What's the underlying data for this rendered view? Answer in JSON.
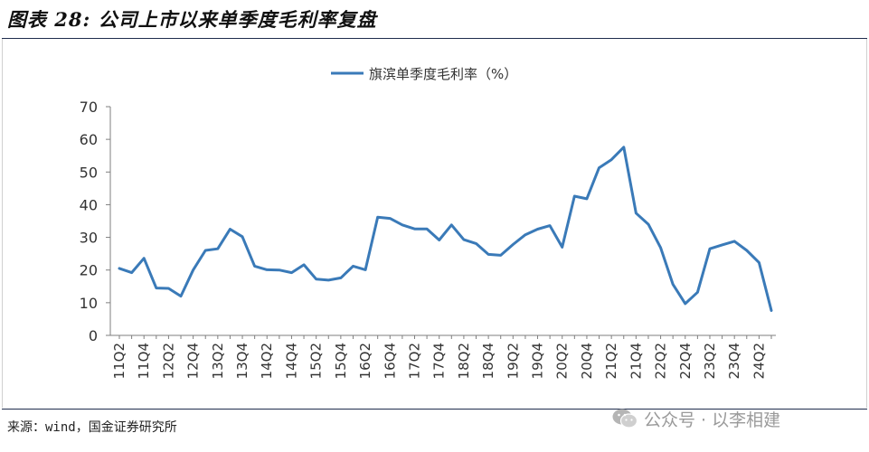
{
  "figure_title": "图表 28: 公司上市以来单季度毛利率复盘",
  "source_text": "来源：wind，国金证券研究所",
  "watermark": {
    "text": "公众号 · 以李相建",
    "icon": "wechat-icon"
  },
  "colors": {
    "line": "#3a7ab8",
    "axis": "#7f7f7f",
    "rule": "#1f2d4d"
  },
  "chart_data": {
    "type": "line",
    "legend_position": "top",
    "grid": false,
    "ylim": [
      0,
      70
    ],
    "yticks": [
      0,
      10,
      20,
      30,
      40,
      50,
      60,
      70
    ],
    "xlabel": "",
    "ylabel": "",
    "x": [
      "11Q2",
      "11Q3",
      "11Q4",
      "12Q1",
      "12Q2",
      "12Q3",
      "12Q4",
      "13Q1",
      "13Q2",
      "13Q3",
      "13Q4",
      "14Q1",
      "14Q2",
      "14Q3",
      "14Q4",
      "15Q1",
      "15Q2",
      "15Q3",
      "15Q4",
      "16Q1",
      "16Q2",
      "16Q3",
      "16Q4",
      "17Q1",
      "17Q2",
      "17Q3",
      "17Q4",
      "18Q1",
      "18Q2",
      "18Q3",
      "18Q4",
      "19Q1",
      "19Q2",
      "19Q3",
      "19Q4",
      "20Q1",
      "20Q2",
      "20Q3",
      "20Q4",
      "21Q1",
      "21Q2",
      "21Q3",
      "21Q4",
      "22Q1",
      "22Q2",
      "22Q3",
      "22Q4",
      "23Q1",
      "23Q2",
      "23Q3",
      "23Q4",
      "24Q1",
      "24Q2",
      "24Q3"
    ],
    "x_tick_labels": [
      "11Q2",
      "11Q4",
      "12Q2",
      "12Q4",
      "13Q2",
      "13Q4",
      "14Q2",
      "14Q4",
      "15Q2",
      "15Q4",
      "16Q2",
      "16Q4",
      "17Q2",
      "17Q4",
      "18Q2",
      "18Q4",
      "19Q2",
      "19Q4",
      "20Q2",
      "20Q4",
      "21Q2",
      "21Q4",
      "22Q2",
      "22Q4",
      "23Q2",
      "23Q4",
      "24Q2"
    ],
    "series": [
      {
        "name": "旗滨单季度毛利率（%）",
        "values": [
          20.5,
          19.2,
          23.6,
          14.5,
          14.4,
          12.0,
          20.0,
          26.0,
          26.5,
          32.5,
          30.2,
          21.2,
          20.1,
          20.0,
          19.2,
          21.6,
          17.2,
          16.9,
          17.6,
          21.2,
          20.1,
          36.2,
          35.8,
          33.8,
          32.6,
          32.6,
          29.2,
          33.8,
          29.3,
          28.1,
          24.8,
          24.5,
          27.8,
          30.8,
          32.5,
          33.6,
          27.0,
          42.6,
          41.8,
          51.3,
          53.8,
          57.6,
          37.4,
          34.0,
          26.8,
          15.6,
          9.7,
          13.2,
          26.5,
          27.7,
          28.8,
          26.0,
          22.3,
          7.6
        ]
      }
    ]
  }
}
